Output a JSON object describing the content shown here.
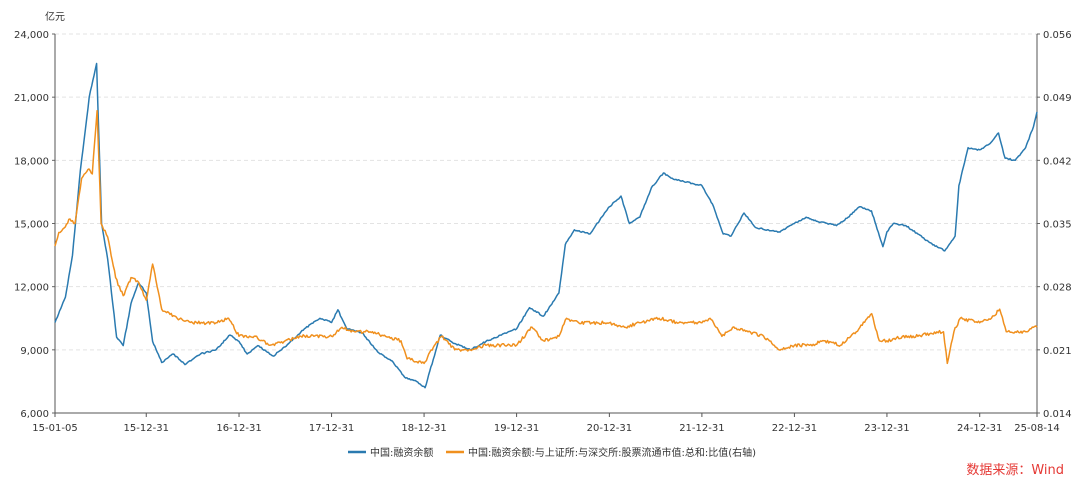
{
  "chart_data": {
    "type": "line",
    "y_unit_left": "亿元",
    "x_tick_labels": [
      "15-01-05",
      "15-12-31",
      "16-12-31",
      "17-12-31",
      "18-12-31",
      "19-12-31",
      "20-12-31",
      "21-12-31",
      "22-12-31",
      "23-12-31",
      "24-12-31",
      "25-08-14"
    ],
    "y_left_ticks": [
      "6,000",
      "9,000",
      "12,000",
      "15,000",
      "18,000",
      "21,000",
      "24,000"
    ],
    "y_right_ticks": [
      "0.014",
      "0.021",
      "0.028",
      "0.035",
      "0.042",
      "0.049",
      "0.056"
    ],
    "y_left_range": [
      6000,
      24000
    ],
    "y_right_range": [
      0.014,
      0.056
    ],
    "grid": "horizontal dashed",
    "legend_position": "bottom-center",
    "series": [
      {
        "name": "中国:融资余额",
        "axis": "left",
        "color": "#2a7ab0",
        "points": [
          [
            "2015-01-05",
            10300
          ],
          [
            "2015-02-15",
            11500
          ],
          [
            "2015-03-15",
            13500
          ],
          [
            "2015-04-15",
            17500
          ],
          [
            "2015-05-20",
            21000
          ],
          [
            "2015-06-18",
            22600
          ],
          [
            "2015-07-08",
            15000
          ],
          [
            "2015-08-01",
            13300
          ],
          [
            "2015-09-05",
            9600
          ],
          [
            "2015-10-01",
            9200
          ],
          [
            "2015-11-01",
            11200
          ],
          [
            "2015-12-01",
            12200
          ],
          [
            "2015-12-31",
            11700
          ],
          [
            "2016-01-25",
            9400
          ],
          [
            "2016-03-01",
            8400
          ],
          [
            "2016-04-15",
            8800
          ],
          [
            "2016-06-01",
            8300
          ],
          [
            "2016-08-01",
            8800
          ],
          [
            "2016-10-01",
            9000
          ],
          [
            "2016-11-25",
            9700
          ],
          [
            "2016-12-31",
            9400
          ],
          [
            "2017-02-01",
            8800
          ],
          [
            "2017-03-15",
            9200
          ],
          [
            "2017-05-15",
            8700
          ],
          [
            "2017-07-15",
            9300
          ],
          [
            "2017-09-15",
            10000
          ],
          [
            "2017-11-15",
            10500
          ],
          [
            "2017-12-31",
            10300
          ],
          [
            "2018-01-25",
            10900
          ],
          [
            "2018-03-01",
            10000
          ],
          [
            "2018-05-01",
            9800
          ],
          [
            "2018-07-01",
            8900
          ],
          [
            "2018-09-01",
            8400
          ],
          [
            "2018-10-15",
            7700
          ],
          [
            "2018-12-01",
            7500
          ],
          [
            "2019-01-04",
            7200
          ],
          [
            "2019-03-05",
            9700
          ],
          [
            "2019-05-01",
            9300
          ],
          [
            "2019-07-01",
            9000
          ],
          [
            "2019-09-01",
            9400
          ],
          [
            "2019-11-01",
            9700
          ],
          [
            "2019-12-31",
            10000
          ],
          [
            "2020-02-20",
            11000
          ],
          [
            "2020-04-15",
            10600
          ],
          [
            "2020-06-15",
            11700
          ],
          [
            "2020-07-10",
            14000
          ],
          [
            "2020-08-15",
            14700
          ],
          [
            "2020-10-15",
            14500
          ],
          [
            "2020-12-31",
            15800
          ],
          [
            "2021-02-15",
            16300
          ],
          [
            "2021-03-20",
            15000
          ],
          [
            "2021-04-30",
            15300
          ],
          [
            "2021-06-15",
            16700
          ],
          [
            "2021-08-01",
            17400
          ],
          [
            "2021-09-10",
            17100
          ],
          [
            "2021-10-20",
            17000
          ],
          [
            "2021-12-31",
            16800
          ],
          [
            "2022-02-15",
            15800
          ],
          [
            "2022-03-25",
            14500
          ],
          [
            "2022-04-25",
            14400
          ],
          [
            "2022-06-15",
            15500
          ],
          [
            "2022-08-01",
            14800
          ],
          [
            "2022-09-15",
            14700
          ],
          [
            "2022-10-31",
            14600
          ],
          [
            "2022-12-31",
            15000
          ],
          [
            "2023-02-15",
            15300
          ],
          [
            "2023-04-01",
            15100
          ],
          [
            "2023-06-15",
            14900
          ],
          [
            "2023-07-31",
            15300
          ],
          [
            "2023-09-15",
            15800
          ],
          [
            "2023-10-31",
            15600
          ],
          [
            "2023-12-15",
            13900
          ],
          [
            "2023-12-31",
            14600
          ],
          [
            "2024-01-25",
            15000
          ],
          [
            "2024-03-15",
            14900
          ],
          [
            "2024-05-01",
            14500
          ],
          [
            "2024-06-15",
            14100
          ],
          [
            "2024-08-15",
            13700
          ],
          [
            "2024-09-25",
            14400
          ],
          [
            "2024-10-10",
            16800
          ],
          [
            "2024-11-15",
            18600
          ],
          [
            "2024-12-31",
            18500
          ],
          [
            "2025-02-10",
            18800
          ],
          [
            "2025-03-15",
            19300
          ],
          [
            "2025-04-10",
            18100
          ],
          [
            "2025-05-20",
            18000
          ],
          [
            "2025-06-30",
            18600
          ],
          [
            "2025-07-31",
            19600
          ],
          [
            "2025-08-14",
            20300
          ]
        ]
      },
      {
        "name": "中国:融资余额:与上证所:与深交所:股票流通市值:总和:比值(右轴)",
        "axis": "right",
        "color": "#f0901e",
        "points": [
          [
            "2015-01-05",
            0.0325
          ],
          [
            "2015-01-20",
            0.034
          ],
          [
            "2015-02-10",
            0.0345
          ],
          [
            "2015-03-05",
            0.0355
          ],
          [
            "2015-03-25",
            0.035
          ],
          [
            "2015-04-20",
            0.04
          ],
          [
            "2015-05-15",
            0.041
          ],
          [
            "2015-06-01",
            0.0405
          ],
          [
            "2015-06-20",
            0.0475
          ],
          [
            "2015-07-06",
            0.035
          ],
          [
            "2015-08-01",
            0.0335
          ],
          [
            "2015-09-01",
            0.029
          ],
          [
            "2015-10-01",
            0.027
          ],
          [
            "2015-11-01",
            0.029
          ],
          [
            "2015-12-01",
            0.0285
          ],
          [
            "2015-12-31",
            0.0265
          ],
          [
            "2016-01-25",
            0.0305
          ],
          [
            "2016-03-01",
            0.0255
          ],
          [
            "2016-05-01",
            0.0245
          ],
          [
            "2016-07-01",
            0.024
          ],
          [
            "2016-10-01",
            0.024
          ],
          [
            "2016-11-20",
            0.0245
          ],
          [
            "2016-12-31",
            0.0225
          ],
          [
            "2017-03-01",
            0.0225
          ],
          [
            "2017-05-01",
            0.0215
          ],
          [
            "2017-07-01",
            0.022
          ],
          [
            "2017-09-01",
            0.0225
          ],
          [
            "2017-12-31",
            0.0225
          ],
          [
            "2018-02-10",
            0.0235
          ],
          [
            "2018-04-01",
            0.023
          ],
          [
            "2018-06-01",
            0.023
          ],
          [
            "2018-08-01",
            0.0225
          ],
          [
            "2018-10-01",
            0.022
          ],
          [
            "2018-10-25",
            0.02
          ],
          [
            "2018-12-31",
            0.0195
          ],
          [
            "2019-02-10",
            0.0215
          ],
          [
            "2019-03-10",
            0.0225
          ],
          [
            "2019-05-01",
            0.021
          ],
          [
            "2019-07-01",
            0.021
          ],
          [
            "2019-09-01",
            0.0215
          ],
          [
            "2019-12-31",
            0.0215
          ],
          [
            "2020-03-01",
            0.0235
          ],
          [
            "2020-04-15",
            0.022
          ],
          [
            "2020-06-15",
            0.0225
          ],
          [
            "2020-07-15",
            0.0245
          ],
          [
            "2020-09-01",
            0.024
          ],
          [
            "2020-12-31",
            0.024
          ],
          [
            "2021-03-01",
            0.0235
          ],
          [
            "2021-05-01",
            0.024
          ],
          [
            "2021-07-15",
            0.0245
          ],
          [
            "2021-10-01",
            0.024
          ],
          [
            "2021-12-31",
            0.024
          ],
          [
            "2022-02-01",
            0.0245
          ],
          [
            "2022-03-20",
            0.0225
          ],
          [
            "2022-05-01",
            0.0235
          ],
          [
            "2022-07-01",
            0.023
          ],
          [
            "2022-09-01",
            0.0225
          ],
          [
            "2022-10-31",
            0.021
          ],
          [
            "2022-12-31",
            0.0215
          ],
          [
            "2023-03-01",
            0.0215
          ],
          [
            "2023-05-01",
            0.022
          ],
          [
            "2023-07-01",
            0.0215
          ],
          [
            "2023-09-01",
            0.023
          ],
          [
            "2023-11-01",
            0.025
          ],
          [
            "2023-12-01",
            0.022
          ],
          [
            "2023-12-31",
            0.022
          ],
          [
            "2024-03-01",
            0.0225
          ],
          [
            "2024-05-01",
            0.0225
          ],
          [
            "2024-07-15",
            0.023
          ],
          [
            "2024-08-10",
            0.023
          ],
          [
            "2024-08-25",
            0.0195
          ],
          [
            "2024-09-20",
            0.023
          ],
          [
            "2024-10-15",
            0.0245
          ],
          [
            "2024-12-31",
            0.024
          ],
          [
            "2025-02-15",
            0.0245
          ],
          [
            "2025-03-20",
            0.0255
          ],
          [
            "2025-04-15",
            0.023
          ],
          [
            "2025-05-20",
            0.023
          ],
          [
            "2025-06-30",
            0.023
          ],
          [
            "2025-07-31",
            0.0235
          ],
          [
            "2025-08-14",
            0.0235
          ]
        ]
      }
    ]
  },
  "source_label": "数据来源：Wind"
}
